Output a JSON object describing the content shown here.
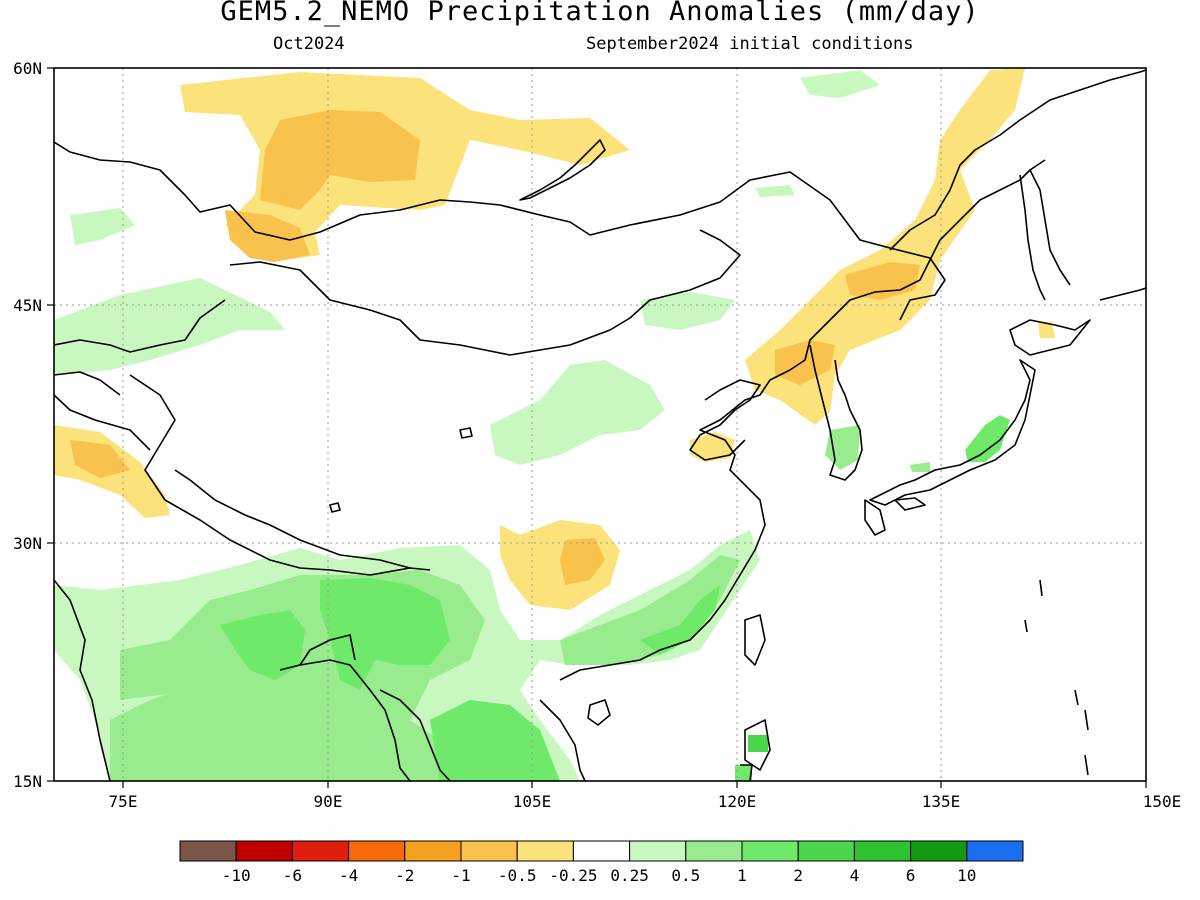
{
  "map": {
    "title": "GEM5.2_NEMO Precipitation Anomalies (mm/day)",
    "valid_month": "Oct2024",
    "initial_conditions": "September2024 initial conditions",
    "lat_labels": [
      "60N",
      "45N",
      "30N",
      "15N"
    ],
    "lon_labels": [
      "75E",
      "90E",
      "105E",
      "120E",
      "135E",
      "150E"
    ],
    "region": "East and South Asia",
    "colorbar": {
      "labels": [
        "-10",
        "-6",
        "-4",
        "-2",
        "-1",
        "-0.5",
        "-0.25",
        "0.25",
        "0.5",
        "1",
        "2",
        "4",
        "6",
        "10"
      ],
      "colors": [
        "#7a5548",
        "#c00000",
        "#e01e10",
        "#f56a0a",
        "#f5a01e",
        "#f8c24c",
        "#fbe27a",
        "#ffffff",
        "#c9f7c0",
        "#98ec8e",
        "#6ee96a",
        "#4ad64a",
        "#2fc22f",
        "#139a13",
        "#1a6ef0"
      ]
    },
    "colors": {
      "neg_light": "#fbe27a",
      "neg_mid": "#f8c24c",
      "pos_light": "#c9f7c0",
      "pos_mid": "#98ec8e",
      "pos_strong": "#6ee96a",
      "pos_stronger": "#4ad64a"
    }
  }
}
